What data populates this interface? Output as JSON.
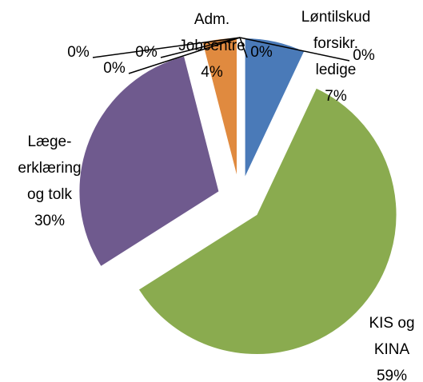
{
  "chart_data": {
    "type": "pie",
    "categories": [
      "Løntilskud forsikr. ledige",
      "KIS og KINA",
      "Læge-erklæring og tolk",
      "Adm. Jobcentre",
      null,
      null,
      null,
      null,
      null
    ],
    "values": [
      7,
      59,
      30,
      4,
      0,
      0,
      0,
      0,
      0
    ],
    "value_labels": [
      "7%",
      "59%",
      "30%",
      "4%",
      "0%",
      "0%",
      "0%",
      "0%",
      "0%"
    ],
    "colors": [
      "#4a7ab8",
      "#8aab4f",
      "#6f5a8e",
      "#e08a3f",
      "#9dc3e6",
      "#c0504d",
      "#bfbfbf",
      "#d9d9d9",
      "#f2f2f2"
    ]
  }
}
